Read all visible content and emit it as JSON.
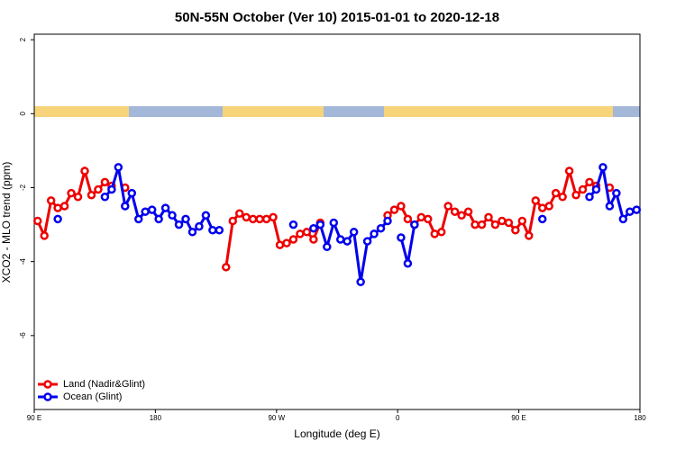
{
  "chart_data": {
    "type": "line",
    "title": "50N-55N October (Ver 10)   2015-01-01 to 2020-12-18",
    "x_label": "Longitude (deg E)",
    "y_label": "XCO2 - MLO trend (ppm)",
    "xlim": [
      90,
      540
    ],
    "ylim": [
      -8,
      2.15
    ],
    "xticks": [
      {
        "value": 90,
        "label": "90 E"
      },
      180,
      {
        "value": 270,
        "label": "90 W"
      },
      {
        "value": 360,
        "label": "0"
      },
      {
        "value": 450,
        "label": "90 E"
      },
      {
        "value": 540,
        "label": "180"
      }
    ],
    "yticks": [
      -6,
      -4,
      -2,
      0,
      2
    ],
    "legend": "bottom-left",
    "x": [
      92.5,
      97.5,
      102.5,
      107.5,
      112.5,
      117.5,
      122.5,
      127.5,
      132.5,
      137.5,
      142.5,
      147.5,
      152.5,
      157.5,
      162.5,
      167.5,
      172.5,
      177.5,
      182.5,
      187.5,
      192.5,
      197.5,
      202.5,
      207.5,
      212.5,
      217.5,
      222.5,
      227.5,
      232.5,
      237.5,
      242.5,
      247.5,
      252.5,
      257.5,
      262.5,
      267.5,
      272.5,
      277.5,
      282.5,
      287.5,
      292.5,
      297.5,
      302.5,
      307.5,
      312.5,
      317.5,
      322.5,
      327.5,
      332.5,
      337.5,
      342.5,
      347.5,
      352.5,
      357.5,
      362.5,
      367.5,
      372.5,
      377.5,
      382.5,
      387.5,
      392.5,
      397.5,
      402.5,
      407.5,
      412.5,
      417.5,
      422.5,
      427.5,
      432.5,
      437.5,
      442.5,
      447.5,
      452.5,
      457.5,
      462.5,
      467.5,
      472.5,
      477.5,
      482.5,
      487.5,
      492.5,
      497.5,
      502.5,
      507.5,
      512.5,
      517.5,
      522.5,
      527.5,
      532.5,
      537.5
    ],
    "series": [
      {
        "name": "Land (Nadir&Glint)",
        "color": "#ee0000",
        "values": [
          -2.9,
          -3.3,
          -2.35,
          -2.55,
          -2.5,
          -2.15,
          -2.25,
          -1.55,
          -2.2,
          -2.05,
          -1.85,
          -1.95,
          null,
          -2.0,
          null,
          null,
          null,
          null,
          null,
          null,
          null,
          null,
          null,
          null,
          null,
          null,
          null,
          null,
          -4.15,
          -2.9,
          -2.7,
          -2.8,
          -2.85,
          -2.85,
          -2.85,
          -2.8,
          -3.55,
          -3.5,
          -3.4,
          -3.25,
          -3.2,
          -3.4,
          -2.95,
          null,
          null,
          null,
          null,
          null,
          null,
          null,
          null,
          null,
          -2.75,
          -2.6,
          -2.5,
          -2.85,
          -3.0,
          -2.8,
          -2.85,
          -3.25,
          -3.2,
          -2.5,
          -2.65,
          -2.75,
          -2.65,
          -3.0,
          -3.0,
          -2.8,
          -3.0,
          -2.9,
          -2.95,
          -3.15,
          -2.9,
          -3.3,
          -2.35,
          -2.55,
          -2.5,
          -2.15,
          -2.25,
          -1.55,
          -2.2,
          -2.05,
          -1.85,
          -1.95,
          null,
          -2.0,
          null,
          null,
          null,
          null
        ]
      },
      {
        "name": "Ocean (Glint)",
        "color": "#0000ee",
        "values": [
          null,
          null,
          null,
          -2.85,
          null,
          null,
          null,
          null,
          null,
          null,
          -2.25,
          -2.05,
          -1.45,
          -2.5,
          -2.15,
          -2.85,
          -2.65,
          -2.6,
          -2.85,
          -2.55,
          -2.75,
          -3.0,
          -2.85,
          -3.2,
          -3.05,
          -2.75,
          -3.15,
          -3.15,
          null,
          null,
          null,
          null,
          null,
          null,
          null,
          null,
          null,
          null,
          -3.0,
          null,
          null,
          -3.1,
          -3.0,
          -3.6,
          -2.95,
          -3.4,
          -3.45,
          -3.2,
          -4.55,
          -3.45,
          -3.25,
          -3.1,
          -2.9,
          null,
          -3.35,
          -4.05,
          -3.0,
          null,
          null,
          null,
          null,
          null,
          null,
          null,
          null,
          null,
          null,
          null,
          null,
          null,
          null,
          null,
          null,
          null,
          null,
          -2.85,
          null,
          null,
          null,
          null,
          null,
          null,
          -2.25,
          -2.05,
          -1.45,
          -2.5,
          -2.15,
          -2.85,
          -2.65,
          -2.6
        ]
      }
    ]
  }
}
